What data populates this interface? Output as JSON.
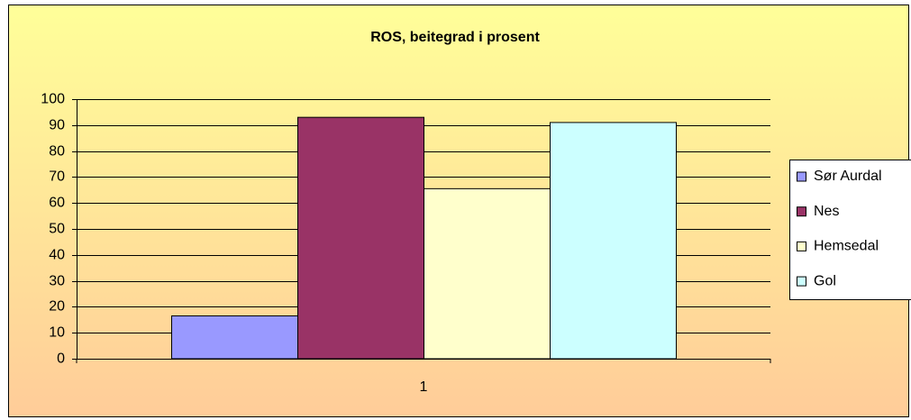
{
  "chart_data": {
    "type": "bar",
    "title": "ROS, beitegrad i prosent",
    "categories": [
      "1"
    ],
    "series": [
      {
        "name": "Sør Aurdal",
        "color": "#9999ff",
        "values": [
          16.5
        ]
      },
      {
        "name": "Nes",
        "color": "#993366",
        "values": [
          93
        ]
      },
      {
        "name": "Hemsedal",
        "color": "#ffffcc",
        "values": [
          65.5
        ]
      },
      {
        "name": "Gol",
        "color": "#ccffff",
        "values": [
          91
        ]
      }
    ],
    "ylim": [
      0,
      100
    ],
    "yticks": [
      0,
      10,
      20,
      30,
      40,
      50,
      60,
      70,
      80,
      90,
      100
    ],
    "grid": true,
    "legend": "right"
  }
}
